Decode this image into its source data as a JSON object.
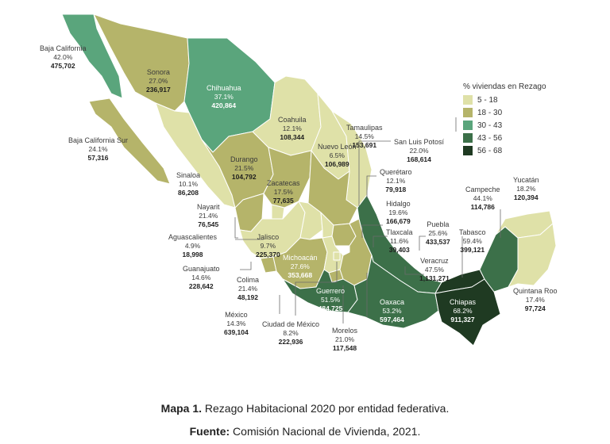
{
  "legend": {
    "title": "% viviendas en Rezago",
    "items": [
      {
        "label": "5 - 18",
        "color": "#dfe1a8"
      },
      {
        "label": "18 - 30",
        "color": "#b5b46a"
      },
      {
        "label": "30 - 43",
        "color": "#5aa57c"
      },
      {
        "label": "43 - 56",
        "color": "#3c7049"
      },
      {
        "label": "56 - 68",
        "color": "#1f3a22"
      }
    ]
  },
  "states": [
    {
      "name": "Baja California",
      "pct": "42.0%",
      "value": "475,702"
    },
    {
      "name": "Sonora",
      "pct": "27.0%",
      "value": "236,917"
    },
    {
      "name": "Chihuahua",
      "pct": "37.1%",
      "value": "420,864"
    },
    {
      "name": "Baja California Sur",
      "pct": "24.1%",
      "value": "57,316"
    },
    {
      "name": "Coahuila",
      "pct": "12.1%",
      "value": "108,344"
    },
    {
      "name": "Tamaulipas",
      "pct": "14.5%",
      "value": "153,691"
    },
    {
      "name": "Nuevo León",
      "pct": "6.5%",
      "value": "106,989"
    },
    {
      "name": "Durango",
      "pct": "21.5%",
      "value": "104,792"
    },
    {
      "name": "Sinaloa",
      "pct": "10.1%",
      "value": "86,208"
    },
    {
      "name": "San Luis Potosí",
      "pct": "22.0%",
      "value": "168,614"
    },
    {
      "name": "Zacatecas",
      "pct": "17.5%",
      "value": "77,635"
    },
    {
      "name": "Querétaro",
      "pct": "12.1%",
      "value": "79,918"
    },
    {
      "name": "Nayarit",
      "pct": "21.4%",
      "value": "76,545"
    },
    {
      "name": "Yucatán",
      "pct": "18.2%",
      "value": "120,394"
    },
    {
      "name": "Campeche",
      "pct": "44.1%",
      "value": "114,786"
    },
    {
      "name": "Hidalgo",
      "pct": "19.6%",
      "value": "166,679"
    },
    {
      "name": "Aguascalientes",
      "pct": "4.9%",
      "value": "18,998"
    },
    {
      "name": "Jalisco",
      "pct": "9.7%",
      "value": "225,370"
    },
    {
      "name": "Puebla",
      "pct": "25.6%",
      "value": "433,537"
    },
    {
      "name": "Tlaxcala",
      "pct": "11.6%",
      "value": "39,403"
    },
    {
      "name": "Tabasco",
      "pct": "59.4%",
      "value": "399,121"
    },
    {
      "name": "Michoacán",
      "pct": "27.6%",
      "value": "353,668"
    },
    {
      "name": "Guanajuato",
      "pct": "14.6%",
      "value": "228,642"
    },
    {
      "name": "Veracruz",
      "pct": "47.5%",
      "value": "1,131,271"
    },
    {
      "name": "Colima",
      "pct": "21.4%",
      "value": "48,192"
    },
    {
      "name": "Quintana Roo",
      "pct": "17.4%",
      "value": "97,724"
    },
    {
      "name": "Guerrero",
      "pct": "51.5%",
      "value": "484,725"
    },
    {
      "name": "Oaxaca",
      "pct": "53.2%",
      "value": "597,464"
    },
    {
      "name": "Chiapas",
      "pct": "68.2%",
      "value": "911,327"
    },
    {
      "name": "México",
      "pct": "14.3%",
      "value": "639,104"
    },
    {
      "name": "Ciudad de México",
      "pct": "8.2%",
      "value": "222,936"
    },
    {
      "name": "Morelos",
      "pct": "21.0%",
      "value": "117,548"
    }
  ],
  "caption": {
    "bold": "Mapa 1.",
    "text": " Rezago Habitacional 2020 por entidad federativa."
  },
  "source": {
    "bold": "Fuente:",
    "text": " Comisión Nacional de Vivienda, 2021."
  }
}
